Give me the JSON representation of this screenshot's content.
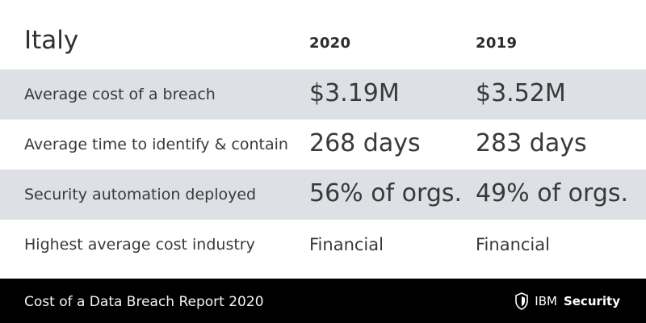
{
  "header": {
    "country": "Italy",
    "years": [
      "2020",
      "2019"
    ]
  },
  "rows": [
    {
      "label": "Average cost of a breach",
      "values": [
        "$3.19M",
        "$3.52M"
      ]
    },
    {
      "label": "Average time to identify & contain",
      "values": [
        "268 days",
        "283 days"
      ]
    },
    {
      "label": "Security automation deployed",
      "values": [
        "56% of orgs.",
        "49% of orgs."
      ]
    },
    {
      "label": "Highest average cost industry",
      "values": [
        "Financial",
        "Financial"
      ]
    }
  ],
  "footer": {
    "report_title": "Cost of a Data Breach Report 2020",
    "brand_prefix": "IBM",
    "brand_suffix": "Security",
    "logo_icon": "shield-icon"
  },
  "colors": {
    "row_shade": "#dde1e6",
    "footer_bg": "#000000",
    "text": "#393939"
  }
}
